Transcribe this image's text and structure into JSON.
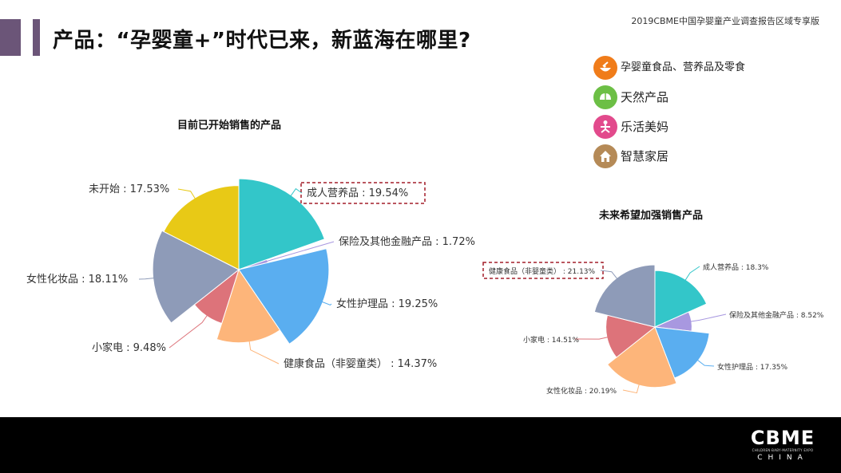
{
  "header": {
    "title": "产品：“孕婴童+”时代已来，新蓝海在哪里?",
    "note": "2019CBME中国孕婴童产业调查报告区域专享版"
  },
  "legend": {
    "items": [
      {
        "label": "孕婴童食品、营养品及零食",
        "icon": "food-bowl-icon",
        "color": "#f07c1a"
      },
      {
        "label": "天然产品",
        "icon": "leaf-icon",
        "color": "#6cbf45"
      },
      {
        "label": "乐活美妈",
        "icon": "yoga-icon",
        "color": "#e24a8c"
      },
      {
        "label": "智慧家居",
        "icon": "house-icon",
        "color": "#b58a57"
      }
    ]
  },
  "chart_data": [
    {
      "type": "pie",
      "variant": "rose",
      "title": "目前已开始销售的产品",
      "categories": [
        "成人营养品",
        "保险及其他金融产品",
        "女性护理品",
        "健康食品（非婴童类）",
        "小家电",
        "女性化妆品",
        "未开始"
      ],
      "values": [
        19.54,
        1.72,
        19.25,
        14.37,
        9.48,
        18.11,
        17.53
      ],
      "labels": [
        "成人营养品 : 19.54%",
        "保险及其他金融产品 : 1.72%",
        "女性护理品 : 19.25%",
        "健康食品（非婴童类） : 14.37%",
        "小家电 : 9.48%",
        "女性化妆品 : 18.11%",
        "未开始 : 17.53%"
      ],
      "colors": [
        "#33c6c9",
        "#a898e0",
        "#5aaef0",
        "#fdb57a",
        "#dd737a",
        "#8e9bb8",
        "#e8c916"
      ],
      "highlighted": "成人营养品"
    },
    {
      "type": "pie",
      "variant": "rose",
      "title": "未来希望加强销售产品",
      "categories": [
        "成人营养品",
        "保险及其他金融产品",
        "女性护理品",
        "女性化妆品",
        "小家电",
        "健康食品（非婴童类）"
      ],
      "values": [
        18.3,
        8.52,
        17.35,
        20.19,
        14.51,
        21.13
      ],
      "labels": [
        "成人营养品 : 18.3%",
        "保险及其他金融产品 : 8.52%",
        "女性护理品 : 17.35%",
        "女性化妆品 : 20.19%",
        "小家电 : 14.51%",
        "健康食品（非婴童类） : 21.13%"
      ],
      "colors": [
        "#33c6c9",
        "#a898e0",
        "#5aaef0",
        "#fdb57a",
        "#dd737a",
        "#8e9bb8"
      ],
      "highlighted": "健康食品（非婴童类）"
    }
  ],
  "footer": {
    "logo_main": "CBME",
    "logo_sub": "CHILDREN·BABY·MATERNITY EXPO",
    "logo_country": "CHINA"
  }
}
